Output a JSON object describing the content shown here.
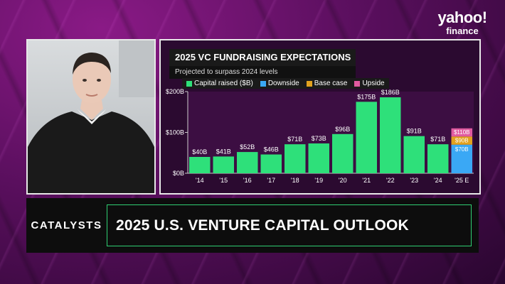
{
  "brand": {
    "name": "yahoo!",
    "sub": "finance"
  },
  "chart": {
    "title": "2025 VC FUNDRAISING EXPECTATIONS",
    "subtitle": "Projected to surpass 2024 levels",
    "legend": [
      {
        "label": "Capital raised ($B)",
        "color": "#2ee07a"
      },
      {
        "label": "Downside",
        "color": "#3aa8f5"
      },
      {
        "label": "Base case",
        "color": "#e2a21f"
      },
      {
        "label": "Upside",
        "color": "#e05aa0"
      }
    ]
  },
  "chart_data": {
    "type": "bar",
    "title": "2025 VC FUNDRAISING EXPECTATIONS",
    "subtitle": "Projected to surpass 2024 levels",
    "categories": [
      "'14",
      "'15",
      "'16",
      "'17",
      "'18",
      "'19",
      "'20",
      "'21",
      "'22",
      "'23",
      "'24",
      "'25 E"
    ],
    "series": [
      {
        "name": "Capital raised ($B)",
        "values": [
          40,
          41,
          52,
          46,
          71,
          73,
          96,
          175,
          186,
          91,
          71,
          null
        ]
      },
      {
        "name": "Downside",
        "values": [
          null,
          null,
          null,
          null,
          null,
          null,
          null,
          null,
          null,
          null,
          null,
          70
        ]
      },
      {
        "name": "Base case",
        "values": [
          null,
          null,
          null,
          null,
          null,
          null,
          null,
          null,
          null,
          null,
          null,
          90
        ]
      },
      {
        "name": "Upside",
        "values": [
          null,
          null,
          null,
          null,
          null,
          null,
          null,
          null,
          null,
          null,
          null,
          110
        ]
      }
    ],
    "data_labels": [
      "$40B",
      "$41B",
      "$52B",
      "$46B",
      "$71B",
      "$73B",
      "$96B",
      "$175B",
      "$186B",
      "$91B",
      "$71B"
    ],
    "projection_labels": [
      "$70B",
      "$90B",
      "$110B"
    ],
    "yticks": [
      "$0B",
      "$100B",
      "$200B"
    ],
    "ylim": [
      0,
      200
    ],
    "grid": false,
    "legend_position": "top-left",
    "colors": {
      "bar": "#2ee07a",
      "downside": "#3aa8f5",
      "base": "#e2a21f",
      "upside": "#e05aa0"
    }
  },
  "lower_third": {
    "tag": "CATALYSTS",
    "headline": "2025 U.S. VENTURE CAPITAL OUTLOOK",
    "accent_color": "#2fcf73"
  }
}
